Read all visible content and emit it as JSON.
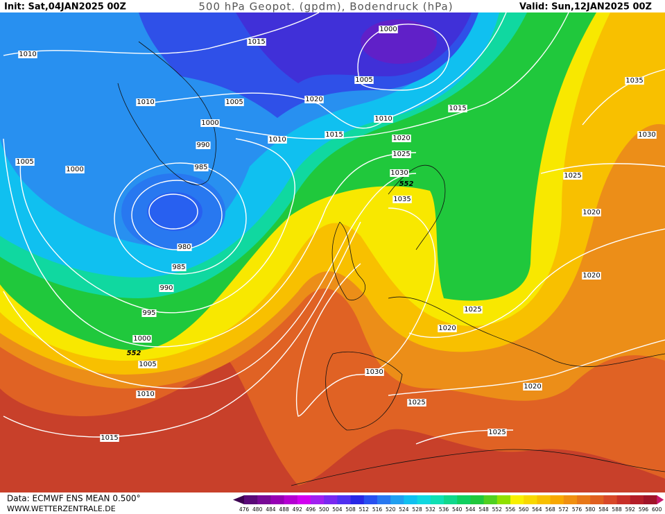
{
  "header": {
    "init": "Init: Sat,04JAN2025 00Z",
    "title": "500 hPa Geopot. (gpdm), Bodendruck (hPa)",
    "valid": "Valid: Sun,12JAN2025 00Z"
  },
  "map": {
    "isobar_labels": [
      1010,
      1015,
      1000,
      1005,
      1020,
      1010,
      1005,
      1000,
      990,
      985,
      1005,
      1000,
      1010,
      1015,
      1010,
      1015,
      1020,
      1025,
      1030,
      1035,
      980,
      985,
      990,
      995,
      1000,
      1005,
      1010,
      1015,
      1030,
      1025,
      1020,
      1025,
      1020,
      1025,
      1020,
      1020,
      1025,
      1030,
      1035
    ],
    "contour_labels": [
      552,
      552
    ]
  },
  "footer": {
    "data": "Data: ECMWF ENS MEAN 0.500°",
    "site": "WWW.WETTERZENTRALE.DE"
  },
  "legend": {
    "labels": [
      476,
      480,
      484,
      488,
      492,
      496,
      500,
      504,
      508,
      512,
      516,
      520,
      524,
      528,
      532,
      536,
      540,
      544,
      548,
      552,
      556,
      560,
      564,
      568,
      572,
      576,
      580,
      584,
      588,
      592,
      596,
      600
    ],
    "colors": [
      "#3c0050",
      "#5a0a78",
      "#780a96",
      "#9600b4",
      "#b400d2",
      "#d200f0",
      "#a020f0",
      "#7828f0",
      "#5030f0",
      "#2828e6",
      "#2850f0",
      "#2878f0",
      "#20a0f0",
      "#10c0f0",
      "#10d8e0",
      "#10e0b4",
      "#10d88c",
      "#10d060",
      "#20c83c",
      "#50d020",
      "#90e000",
      "#f8f000",
      "#f8d800",
      "#f8c000",
      "#f8a800",
      "#f09010",
      "#e87818",
      "#e06020",
      "#d84828",
      "#c83028",
      "#b41e28",
      "#a01428",
      "#c8186c"
    ]
  }
}
